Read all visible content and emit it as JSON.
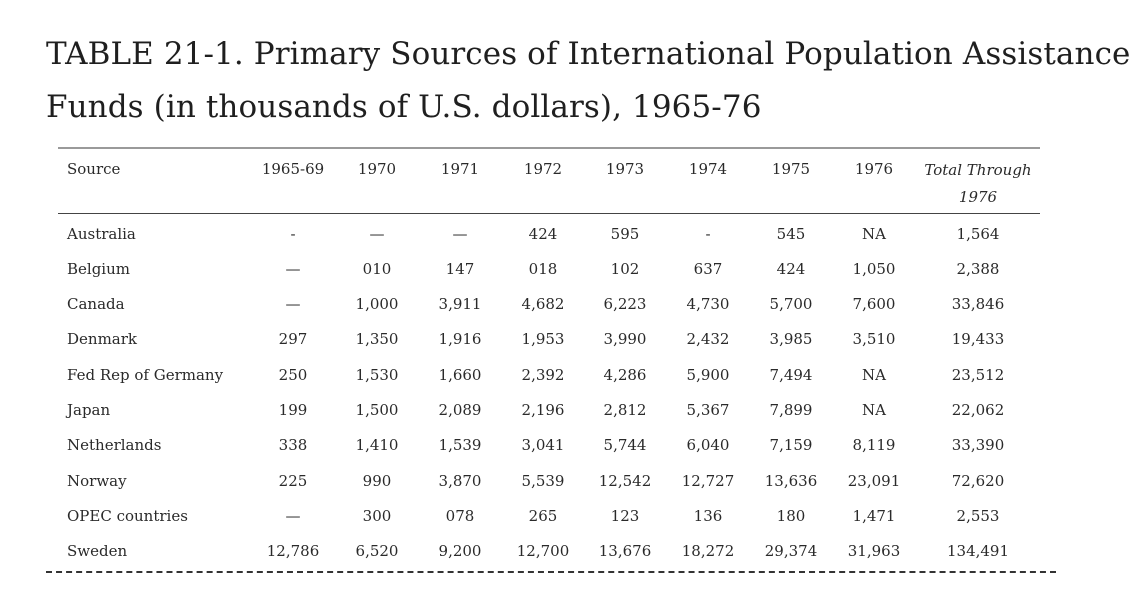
{
  "title": {
    "line1": "TABLE 21-1. Primary Sources of International Population Assistance",
    "line2": "Funds (in thousands of U.S. dollars), 1965-76"
  },
  "table": {
    "headers": {
      "source": "Source",
      "years": [
        "1965-69",
        "1970",
        "1971",
        "1972",
        "1973",
        "1974",
        "1975",
        "1976"
      ],
      "total_line1": "Total Through",
      "total_line2": "1976"
    },
    "rows": [
      {
        "source": "Australia",
        "values": [
          "-",
          "—",
          "—",
          "424",
          "595",
          "-",
          "545",
          "NA"
        ],
        "total": "1,564"
      },
      {
        "source": "Belgium",
        "values": [
          "—",
          "010",
          "147",
          "018",
          "102",
          "637",
          "424",
          "1,050"
        ],
        "total": "2,388"
      },
      {
        "source": "Canada",
        "values": [
          "—",
          "1,000",
          "3,911",
          "4,682",
          "6,223",
          "4,730",
          "5,700",
          "7,600"
        ],
        "total": "33,846"
      },
      {
        "source": "Denmark",
        "values": [
          "297",
          "1,350",
          "1,916",
          "1,953",
          "3,990",
          "2,432",
          "3,985",
          "3,510"
        ],
        "total": "19,433"
      },
      {
        "source": "Fed Rep of Germany",
        "values": [
          "250",
          "1,530",
          "1,660",
          "2,392",
          "4,286",
          "5,900",
          "7,494",
          "NA"
        ],
        "total": "23,512"
      },
      {
        "source": "Japan",
        "values": [
          "199",
          "1,500",
          "2,089",
          "2,196",
          "2,812",
          "5,367",
          "7,899",
          "NA"
        ],
        "total": "22,062"
      },
      {
        "source": "Netherlands",
        "values": [
          "338",
          "1,410",
          "1,539",
          "3,041",
          "5,744",
          "6,040",
          "7,159",
          "8,119"
        ],
        "total": "33,390"
      },
      {
        "source": "Norway",
        "values": [
          "225",
          "990",
          "3,870",
          "5,539",
          "12,542",
          "12,727",
          "13,636",
          "23,091"
        ],
        "total": "72,620"
      },
      {
        "source": "OPEC countries",
        "values": [
          "—",
          "300",
          "078",
          "265",
          "123",
          "136",
          "180",
          "1,471"
        ],
        "total": "2,553"
      },
      {
        "source": "Sweden",
        "values": [
          "12,786",
          "6,520",
          "9,200",
          "12,700",
          "13,676",
          "18,272",
          "29,374",
          "31,963"
        ],
        "total": "134,491"
      }
    ]
  }
}
